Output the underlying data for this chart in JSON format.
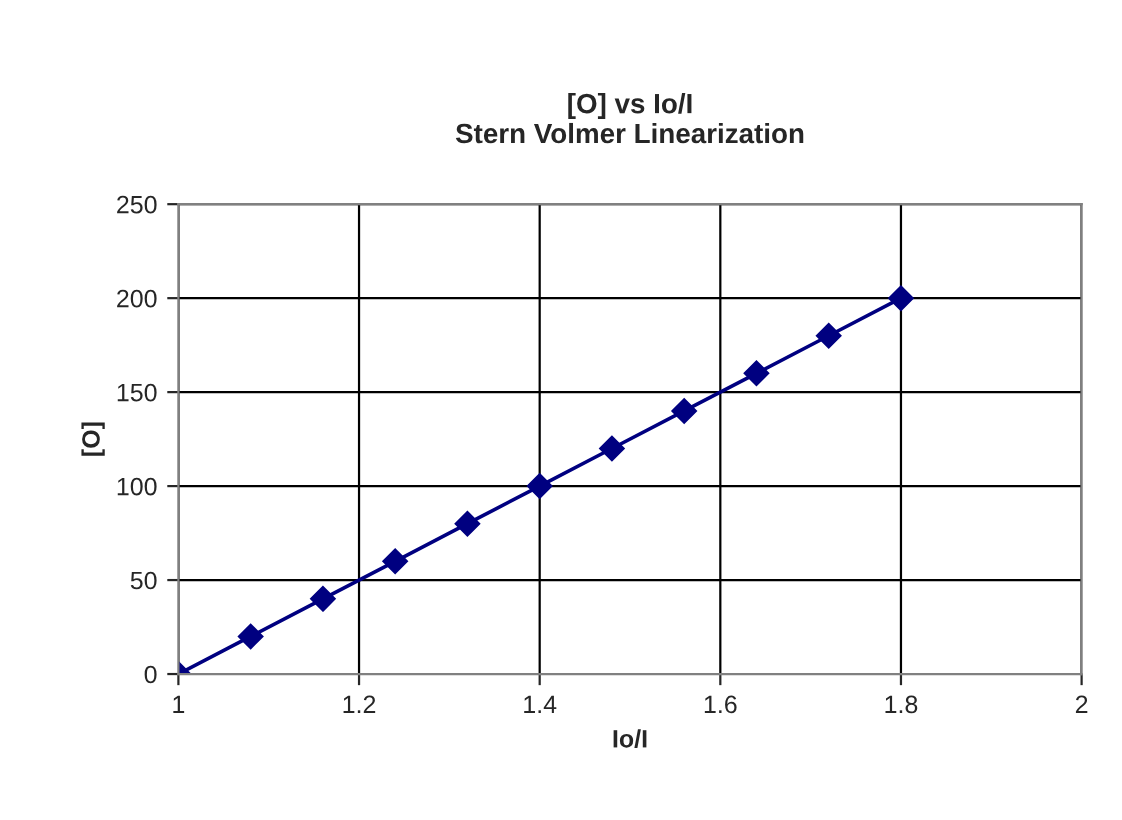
{
  "chart_data": {
    "type": "line",
    "title": "[O] vs Io/I\nStern Volmer Linearization",
    "xlabel": "Io/I",
    "ylabel": "[O]",
    "x": [
      1,
      1.08,
      1.16,
      1.24,
      1.32,
      1.4,
      1.48,
      1.56,
      1.64,
      1.72,
      1.8
    ],
    "series": [
      {
        "color": "#000080",
        "values": [
          0,
          20,
          40,
          60,
          80,
          100,
          120,
          140,
          160,
          180,
          200
        ]
      }
    ],
    "xlim": [
      1,
      2
    ],
    "xticks": [
      1,
      1.2,
      1.4,
      1.6,
      1.8,
      2
    ],
    "ylim": [
      0,
      250
    ],
    "yticks": [
      0,
      50,
      100,
      150,
      200,
      250
    ],
    "grid": true,
    "marker": "diamond",
    "line_style": "solid"
  }
}
